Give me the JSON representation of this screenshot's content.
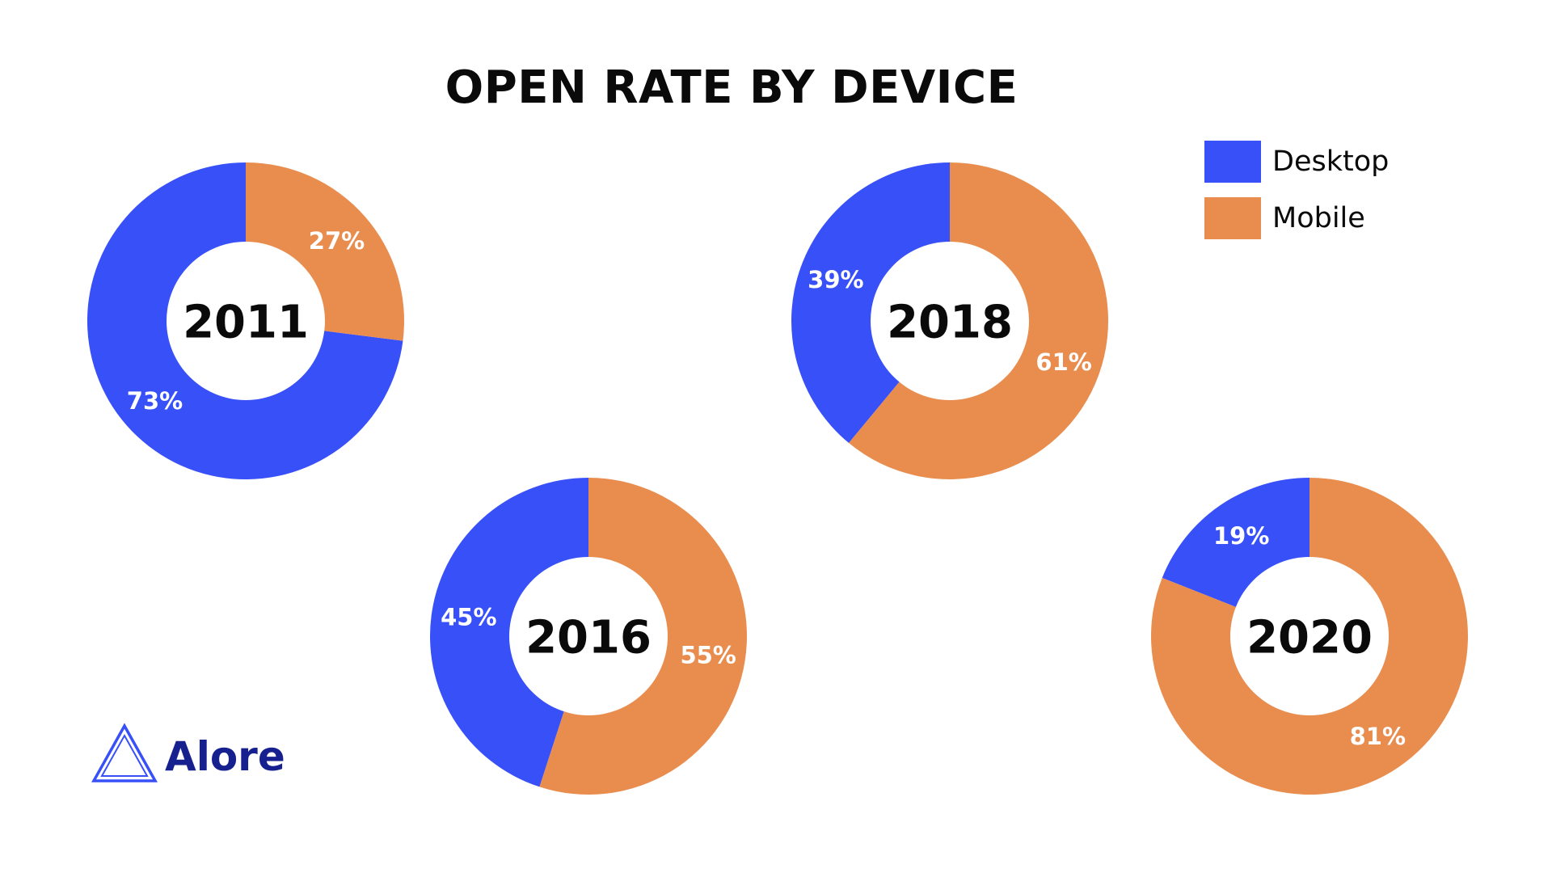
{
  "title": "OPEN RATE BY DEVICE",
  "colors": {
    "desktop": "#3850f8",
    "mobile": "#e98d4f",
    "logo": "#16208f"
  },
  "legend": [
    {
      "label": "Desktop",
      "color": "#3850f8"
    },
    {
      "label": "Mobile",
      "color": "#e98d4f"
    }
  ],
  "logo": {
    "text": "Alore",
    "icon": "triangle-logo-icon"
  },
  "chart_data": [
    {
      "type": "pie",
      "center_label": "2011",
      "categories": [
        "Desktop",
        "Mobile"
      ],
      "values": [
        73,
        27
      ],
      "labels": [
        "73%",
        "27%"
      ]
    },
    {
      "type": "pie",
      "center_label": "2016",
      "categories": [
        "Desktop",
        "Mobile"
      ],
      "values": [
        45,
        55
      ],
      "labels": [
        "45%",
        "55%"
      ]
    },
    {
      "type": "pie",
      "center_label": "2018",
      "categories": [
        "Desktop",
        "Mobile"
      ],
      "values": [
        39,
        61
      ],
      "labels": [
        "39%",
        "61%"
      ]
    },
    {
      "type": "pie",
      "center_label": "2020",
      "categories": [
        "Desktop",
        "Mobile"
      ],
      "values": [
        19,
        81
      ],
      "labels": [
        "19%",
        "81%"
      ]
    }
  ]
}
